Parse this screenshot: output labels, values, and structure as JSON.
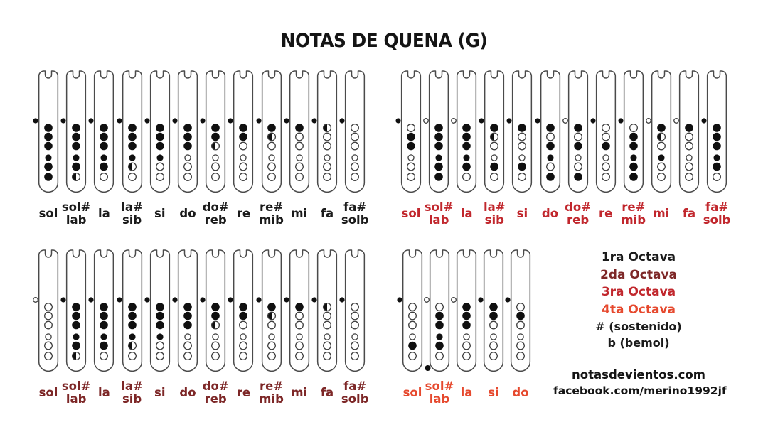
{
  "title": "NOTAS DE QUENA (G)",
  "legend": {
    "octaves": [
      {
        "label": "1ra Octava",
        "color": "#1b1b1b"
      },
      {
        "label": "2da Octava",
        "color": "#7d2727"
      },
      {
        "label": "3ra Octava",
        "color": "#c1272d"
      },
      {
        "label": "4ta Octava",
        "color": "#e6492e"
      }
    ],
    "sharp_note": "# (sostenido)",
    "flat_note": "b (bemol)"
  },
  "footer": {
    "website": "notasdevientos.com",
    "facebook": "facebook.com/merino1992jf"
  },
  "groups": [
    {
      "id": "octava-1",
      "octave": "1ra Octava",
      "label_color": "#1b1b1b",
      "flutes": [
        {
          "note": [
            "sol"
          ],
          "thumb": "F",
          "holes": [
            "F",
            "F",
            "F",
            "F",
            "F",
            "F"
          ]
        },
        {
          "note": [
            "sol#",
            "lab"
          ],
          "thumb": "F",
          "holes": [
            "F",
            "F",
            "F",
            "F",
            "F",
            "H"
          ]
        },
        {
          "note": [
            "la"
          ],
          "thumb": "F",
          "holes": [
            "F",
            "F",
            "F",
            "F",
            "F",
            "O"
          ]
        },
        {
          "note": [
            "la#",
            "sib"
          ],
          "thumb": "F",
          "holes": [
            "F",
            "F",
            "F",
            "F",
            "H",
            "O"
          ]
        },
        {
          "note": [
            "si"
          ],
          "thumb": "F",
          "holes": [
            "F",
            "F",
            "F",
            "F",
            "O",
            "O"
          ]
        },
        {
          "note": [
            "do"
          ],
          "thumb": "F",
          "holes": [
            "F",
            "F",
            "F",
            "O",
            "O",
            "O"
          ]
        },
        {
          "note": [
            "do#",
            "reb"
          ],
          "thumb": "F",
          "holes": [
            "F",
            "F",
            "H",
            "O",
            "O",
            "O"
          ]
        },
        {
          "note": [
            "re"
          ],
          "thumb": "F",
          "holes": [
            "F",
            "F",
            "O",
            "O",
            "O",
            "O"
          ]
        },
        {
          "note": [
            "re#",
            "mib"
          ],
          "thumb": "F",
          "holes": [
            "F",
            "H",
            "O",
            "O",
            "O",
            "O"
          ]
        },
        {
          "note": [
            "mi"
          ],
          "thumb": "F",
          "holes": [
            "F",
            "O",
            "O",
            "O",
            "O",
            "O"
          ]
        },
        {
          "note": [
            "fa"
          ],
          "thumb": "F",
          "holes": [
            "H",
            "O",
            "O",
            "O",
            "O",
            "O"
          ]
        },
        {
          "note": [
            "fa#",
            "solb"
          ],
          "thumb": "F",
          "holes": [
            "O",
            "O",
            "O",
            "O",
            "O",
            "O"
          ]
        }
      ]
    },
    {
      "id": "octava-3",
      "octave": "3ra Octava",
      "label_color": "#c1272d",
      "flutes": [
        {
          "note": [
            "sol"
          ],
          "thumb": "F",
          "holes": [
            "O",
            "F",
            "F",
            "O",
            "O",
            "O"
          ]
        },
        {
          "note": [
            "sol#",
            "lab"
          ],
          "thumb": "O",
          "holes": [
            "F",
            "F",
            "F",
            "F",
            "F",
            "F"
          ]
        },
        {
          "note": [
            "la"
          ],
          "thumb": "O",
          "holes": [
            "F",
            "F",
            "F",
            "F",
            "F",
            "O"
          ]
        },
        {
          "note": [
            "la#",
            "sib"
          ],
          "thumb": "F",
          "holes": [
            "F",
            "H",
            "O",
            "O",
            "F",
            "O"
          ]
        },
        {
          "note": [
            "si"
          ],
          "thumb": "F",
          "holes": [
            "F",
            "O",
            "O",
            "O",
            "F",
            "O"
          ]
        },
        {
          "note": [
            "do"
          ],
          "thumb": "F",
          "holes": [
            "F",
            "O",
            "F",
            "F",
            "O",
            "F"
          ]
        },
        {
          "note": [
            "do#",
            "reb"
          ],
          "thumb": "O",
          "holes": [
            "F",
            "O",
            "F",
            "O",
            "O",
            "F"
          ]
        },
        {
          "note": [
            "re"
          ],
          "thumb": "F",
          "holes": [
            "O",
            "O",
            "F",
            "O",
            "O",
            "O"
          ]
        },
        {
          "note": [
            "re#",
            "mib"
          ],
          "thumb": "F",
          "holes": [
            "O",
            "F",
            "F",
            "F",
            "F",
            "F"
          ]
        },
        {
          "note": [
            "mi"
          ],
          "thumb": "O",
          "holes": [
            "F",
            "H",
            "O",
            "F",
            "O",
            "O"
          ]
        },
        {
          "note": [
            "fa"
          ],
          "thumb": "O",
          "holes": [
            "F",
            "O",
            "O",
            "O",
            "O",
            "O"
          ]
        },
        {
          "note": [
            "fa#",
            "solb"
          ],
          "thumb": "F",
          "holes": [
            "F",
            "F",
            "F",
            "F",
            "F",
            "O"
          ]
        }
      ]
    },
    {
      "id": "octava-2",
      "octave": "2da Octava",
      "label_color": "#7d2727",
      "flutes": [
        {
          "note": [
            "sol"
          ],
          "thumb": "O",
          "holes": [
            "O",
            "O",
            "O",
            "O",
            "O",
            "O"
          ]
        },
        {
          "note": [
            "sol#",
            "lab"
          ],
          "thumb": "F",
          "holes": [
            "F",
            "F",
            "F",
            "F",
            "F",
            "H"
          ]
        },
        {
          "note": [
            "la"
          ],
          "thumb": "F",
          "holes": [
            "F",
            "F",
            "F",
            "F",
            "F",
            "O"
          ]
        },
        {
          "note": [
            "la#",
            "sib"
          ],
          "thumb": "F",
          "holes": [
            "F",
            "F",
            "F",
            "F",
            "H",
            "O"
          ]
        },
        {
          "note": [
            "si"
          ],
          "thumb": "F",
          "holes": [
            "F",
            "F",
            "F",
            "F",
            "O",
            "O"
          ]
        },
        {
          "note": [
            "do"
          ],
          "thumb": "F",
          "holes": [
            "F",
            "F",
            "F",
            "O",
            "O",
            "O"
          ]
        },
        {
          "note": [
            "do#",
            "reb"
          ],
          "thumb": "F",
          "holes": [
            "F",
            "F",
            "H",
            "O",
            "O",
            "O"
          ]
        },
        {
          "note": [
            "re"
          ],
          "thumb": "F",
          "holes": [
            "F",
            "F",
            "O",
            "O",
            "O",
            "O"
          ]
        },
        {
          "note": [
            "re#",
            "mib"
          ],
          "thumb": "F",
          "holes": [
            "F",
            "H",
            "O",
            "O",
            "O",
            "O"
          ]
        },
        {
          "note": [
            "mi"
          ],
          "thumb": "F",
          "holes": [
            "F",
            "O",
            "O",
            "O",
            "O",
            "O"
          ]
        },
        {
          "note": [
            "fa"
          ],
          "thumb": "F",
          "holes": [
            "H",
            "O",
            "O",
            "O",
            "O",
            "O"
          ]
        },
        {
          "note": [
            "fa#",
            "solb"
          ],
          "thumb": "F",
          "holes": [
            "O",
            "O",
            "O",
            "O",
            "O",
            "O"
          ]
        }
      ]
    },
    {
      "id": "octava-4",
      "octave": "4ta Octava",
      "label_color": "#e6492e",
      "flutes": [
        {
          "note": [
            "sol"
          ],
          "thumb": "F",
          "holes": [
            "O",
            "O",
            "O",
            "O",
            "F",
            "O"
          ]
        },
        {
          "note": [
            "sol#",
            "lab"
          ],
          "thumb": "O",
          "holes": [
            "O",
            "F",
            "F",
            "F",
            "F",
            "O"
          ],
          "bottom_dot": true
        },
        {
          "note": [
            "la"
          ],
          "thumb": "O",
          "holes": [
            "F",
            "F",
            "F",
            "O",
            "O",
            "O"
          ]
        },
        {
          "note": [
            "si"
          ],
          "thumb": "F",
          "holes": [
            "F",
            "F",
            "O",
            "O",
            "O",
            "O"
          ]
        },
        {
          "note": [
            "do"
          ],
          "thumb": "F",
          "holes": [
            "O",
            "F",
            "O",
            "O",
            "O",
            "O"
          ]
        }
      ]
    }
  ]
}
